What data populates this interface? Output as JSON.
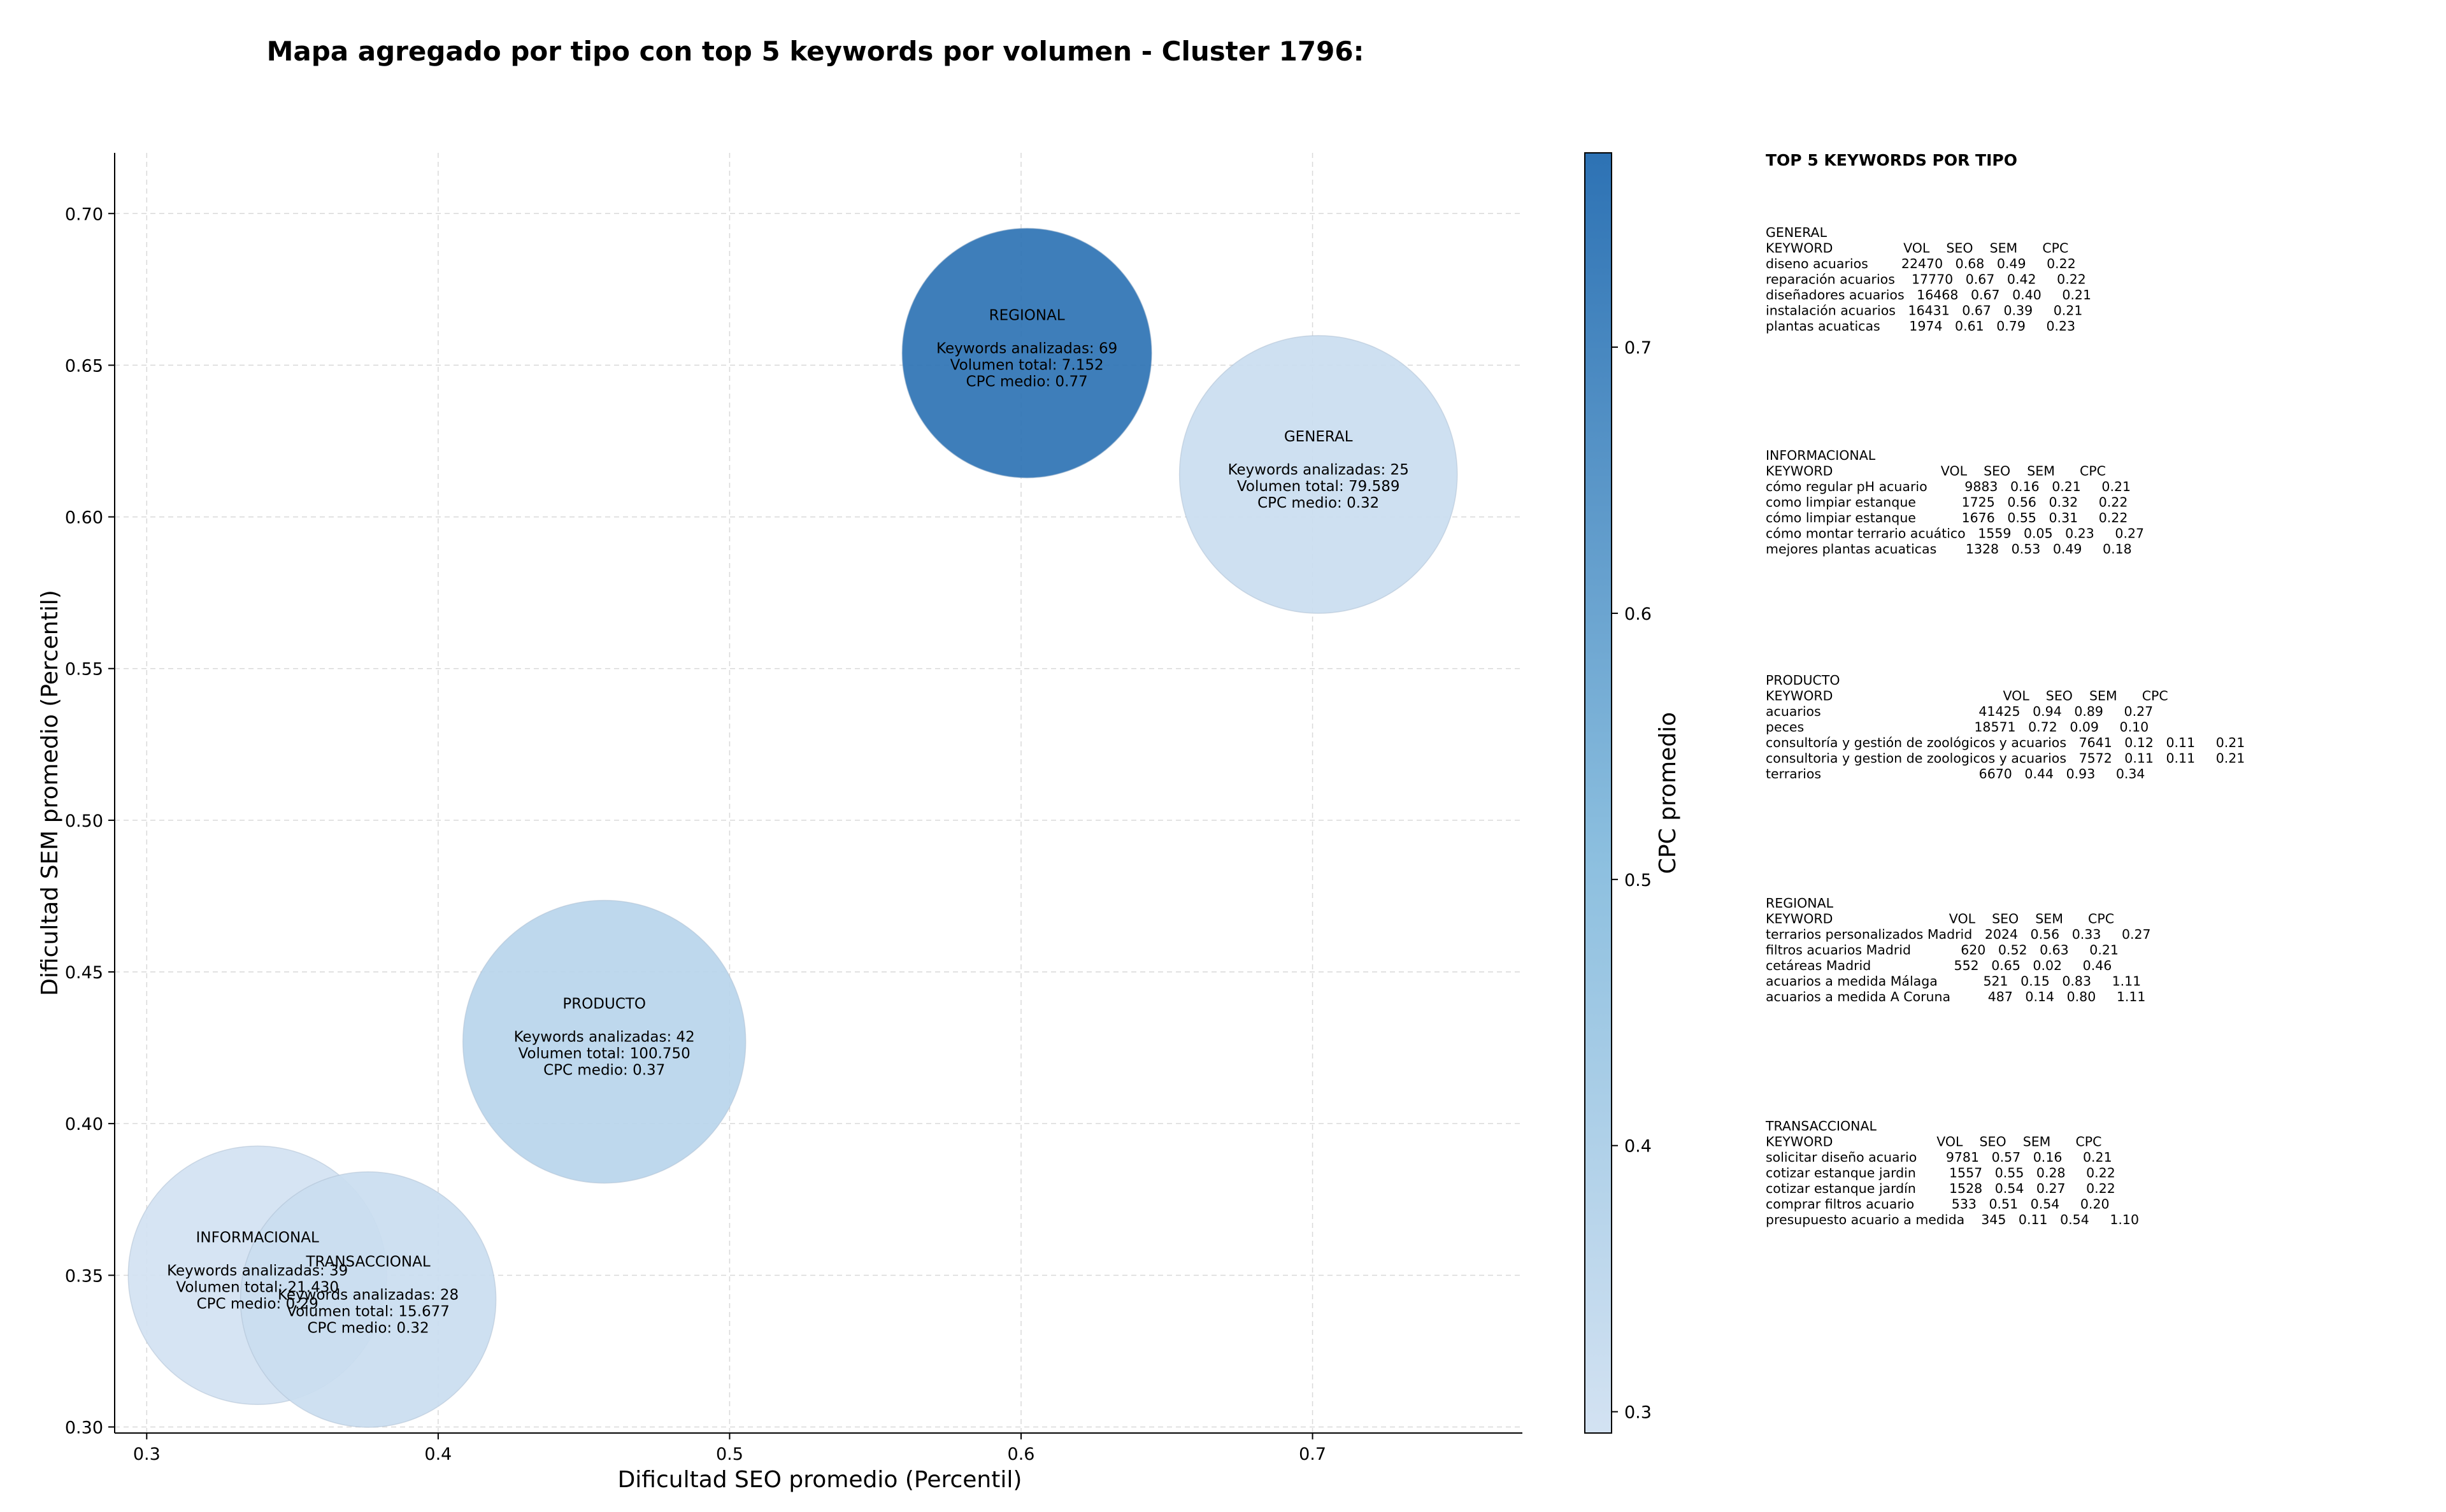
{
  "chart_data": {
    "type": "scatter",
    "title": "Mapa agregado por tipo con top 5 keywords por volumen - Cluster 1796:",
    "xlabel": "Dificultad SEO promedio (Percentil)",
    "ylabel": "Dificultad SEM promedio (Percentil)",
    "xlim": [
      0.289,
      0.772
    ],
    "ylim": [
      0.298,
      0.72
    ],
    "xticks": [
      "0.3",
      "0.4",
      "0.5",
      "0.6",
      "0.7"
    ],
    "yticks": [
      "0.30",
      "0.35",
      "0.40",
      "0.45",
      "0.50",
      "0.55",
      "0.60",
      "0.65",
      "0.70"
    ],
    "grid": true,
    "colorbar": {
      "label": "CPC promedio",
      "min": 0.292,
      "max": 0.773,
      "ticks": [
        "0.3",
        "0.4",
        "0.5",
        "0.6",
        "0.7"
      ],
      "color_low": "#d3e2f2",
      "color_high": "#2d72b4"
    },
    "points": [
      {
        "name": "REGIONAL",
        "x": 0.602,
        "y": 0.654,
        "volume": 7152,
        "cpc": 0.77,
        "lines": [
          "REGIONAL",
          "",
          "Keywords analizadas: 69",
          "Volumen total: 7.152",
          "CPC medio: 0.77"
        ]
      },
      {
        "name": "GENERAL",
        "x": 0.702,
        "y": 0.614,
        "volume": 79589,
        "cpc": 0.32,
        "lines": [
          "GENERAL",
          "",
          "Keywords analizadas: 25",
          "Volumen total: 79.589",
          "CPC medio: 0.32"
        ]
      },
      {
        "name": "PRODUCTO",
        "x": 0.457,
        "y": 0.427,
        "volume": 100750,
        "cpc": 0.37,
        "lines": [
          "PRODUCTO",
          "",
          "Keywords analizadas: 42",
          "Volumen total: 100.750",
          "CPC medio: 0.37"
        ]
      },
      {
        "name": "INFORMACIONAL",
        "x": 0.338,
        "y": 0.35,
        "volume": 21430,
        "cpc": 0.29,
        "lines": [
          "INFORMACIONAL",
          "",
          "Keywords analizadas: 39",
          "Volumen total: 21.430",
          "CPC medio: 0.29"
        ]
      },
      {
        "name": "TRANSACCIONAL",
        "x": 0.376,
        "y": 0.342,
        "volume": 15677,
        "cpc": 0.32,
        "lines": [
          "TRANSACCIONAL",
          "",
          "Keywords analizadas: 28",
          "Volumen total: 15.677",
          "CPC medio: 0.32"
        ]
      }
    ],
    "side_panel": {
      "title": "TOP 5 KEYWORDS POR TIPO",
      "blocks": [
        {
          "name": "GENERAL",
          "lines": [
            "GENERAL",
            "KEYWORD                 VOL    SEO    SEM      CPC",
            "diseno acuarios        22470   0.68   0.49     0.22",
            "reparación acuarios    17770   0.67   0.42     0.22",
            "diseñadores acuarios   16468   0.67   0.40     0.21",
            "instalación acuarios   16431   0.67   0.39     0.21",
            "plantas acuaticas       1974   0.61   0.79     0.23"
          ]
        },
        {
          "name": "INFORMACIONAL",
          "lines": [
            "INFORMACIONAL",
            "KEYWORD                          VOL    SEO    SEM      CPC",
            "cómo regular pH acuario         9883   0.16   0.21     0.21",
            "como limpiar estanque           1725   0.56   0.32     0.22",
            "cómo limpiar estanque           1676   0.55   0.31     0.22",
            "cómo montar terrario acuático   1559   0.05   0.23     0.27",
            "mejores plantas acuaticas       1328   0.53   0.49     0.18"
          ]
        },
        {
          "name": "PRODUCTO",
          "lines": [
            "PRODUCTO",
            "KEYWORD                                         VOL    SEO    SEM      CPC",
            "acuarios                                      41425   0.94   0.89     0.27",
            "peces                                         18571   0.72   0.09     0.10",
            "consultoría y gestión de zoológicos y acuarios   7641   0.12   0.11     0.21",
            "consultoria y gestion de zoologicos y acuarios   7572   0.11   0.11     0.21",
            "terrarios                                      6670   0.44   0.93     0.34"
          ]
        },
        {
          "name": "REGIONAL",
          "lines": [
            "REGIONAL",
            "KEYWORD                            VOL    SEO    SEM      CPC",
            "terrarios personalizados Madrid   2024   0.56   0.33     0.27",
            "filtros acuarios Madrid            620   0.52   0.63     0.21",
            "cetáreas Madrid                    552   0.65   0.02     0.46",
            "acuarios a medida Málaga           521   0.15   0.83     1.11",
            "acuarios a medida A Coruna         487   0.14   0.80     1.11"
          ]
        },
        {
          "name": "TRANSACCIONAL",
          "lines": [
            "TRANSACCIONAL",
            "KEYWORD                         VOL    SEO    SEM      CPC",
            "solicitar diseño acuario       9781   0.57   0.16     0.21",
            "cotizar estanque jardin        1557   0.55   0.28     0.22",
            "cotizar estanque jardín        1528   0.54   0.27     0.22",
            "comprar filtros acuario         533   0.51   0.54     0.20",
            "presupuesto acuario a medida    345   0.11   0.54     1.10"
          ]
        }
      ]
    }
  }
}
